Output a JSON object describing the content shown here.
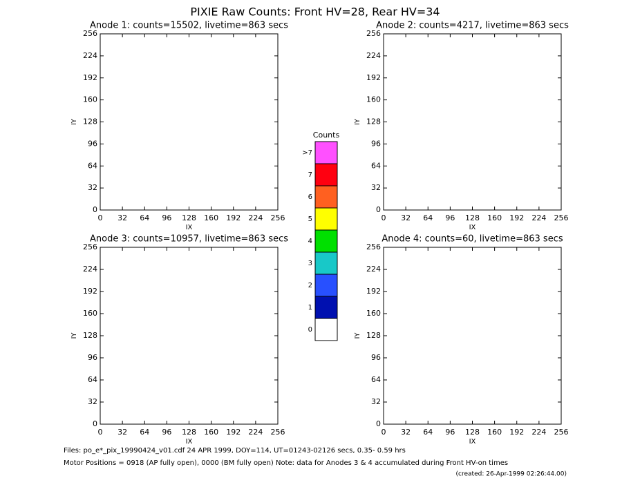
{
  "title": "PIXIE Raw Counts:  Front HV=28, Rear HV=34",
  "chart_data": [
    {
      "type": "heatmap",
      "title": "Anode 1: counts=15502, livetime=863 secs",
      "x_label": "IX",
      "y_label": "IY",
      "xlim": [
        0,
        256
      ],
      "ylim": [
        0,
        256
      ],
      "xticks": [
        0,
        32,
        64,
        96,
        128,
        160,
        192,
        224,
        256
      ],
      "yticks": [
        0,
        32,
        64,
        96,
        128,
        160,
        192,
        224,
        256
      ]
    },
    {
      "type": "heatmap",
      "title": "Anode 2: counts=4217, livetime=863 secs",
      "x_label": "IX",
      "y_label": "IY",
      "xlim": [
        0,
        256
      ],
      "ylim": [
        0,
        256
      ],
      "xticks": [
        0,
        32,
        64,
        96,
        128,
        160,
        192,
        224,
        256
      ],
      "yticks": [
        0,
        32,
        64,
        96,
        128,
        160,
        192,
        224,
        256
      ]
    },
    {
      "type": "heatmap",
      "title": "Anode 3: counts=10957, livetime=863 secs",
      "x_label": "IX",
      "y_label": "IY",
      "xlim": [
        0,
        256
      ],
      "ylim": [
        0,
        256
      ],
      "xticks": [
        0,
        32,
        64,
        96,
        128,
        160,
        192,
        224,
        256
      ],
      "yticks": [
        0,
        32,
        64,
        96,
        128,
        160,
        192,
        224,
        256
      ]
    },
    {
      "type": "heatmap",
      "title": "Anode 4: counts=60, livetime=863 secs",
      "x_label": "IX",
      "y_label": "IY",
      "xlim": [
        0,
        256
      ],
      "ylim": [
        0,
        256
      ],
      "xticks": [
        0,
        32,
        64,
        96,
        128,
        160,
        192,
        224,
        256
      ],
      "yticks": [
        0,
        32,
        64,
        96,
        128,
        160,
        192,
        224,
        256
      ]
    }
  ],
  "colorbar": {
    "title": "Counts",
    "levels": [
      {
        "label": "0",
        "color": "#ffffff"
      },
      {
        "label": "1",
        "color": "#0010b0"
      },
      {
        "label": "2",
        "color": "#2850ff"
      },
      {
        "label": "3",
        "color": "#18c8c8"
      },
      {
        "label": "4",
        "color": "#00e000"
      },
      {
        "label": "5",
        "color": "#ffff00"
      },
      {
        "label": "6",
        "color": "#ff6020"
      },
      {
        "label": "7",
        "color": "#ff0010"
      },
      {
        "label": ">7",
        "color": "#ff50ff"
      }
    ]
  },
  "footer": [
    "Files: po_e*_pix_19990424_v01.cdf    24 APR 1999, DOY=114, UT=01243-02126 secs,  0.35- 0.59 hrs",
    "Motor Positions = 0918 (AP fully open), 0000 (BM fully open)    Note: data for Anodes 3 & 4 accumulated during Front HV-on times",
    "(created: 26-Apr-1999 02:26:44.00)"
  ]
}
